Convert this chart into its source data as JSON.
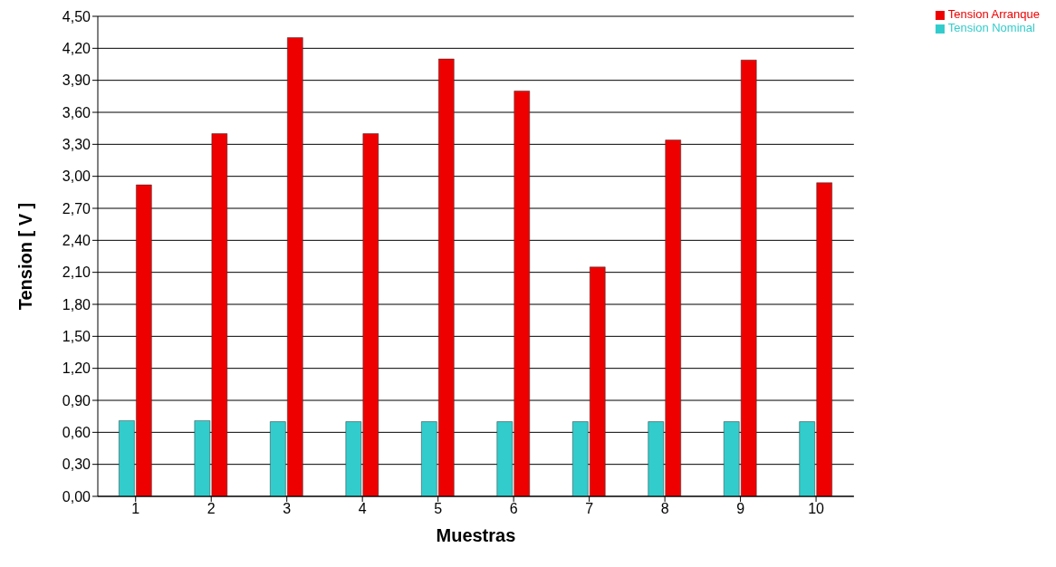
{
  "chart_data": {
    "type": "bar",
    "xlabel": "Muestras",
    "ylabel": "Tension [ V ]",
    "categories": [
      "1",
      "2",
      "3",
      "4",
      "5",
      "6",
      "7",
      "8",
      "9",
      "10"
    ],
    "series": [
      {
        "name": "Tension Nominal",
        "color": "#33cccc",
        "values": [
          0.71,
          0.71,
          0.7,
          0.7,
          0.7,
          0.7,
          0.7,
          0.7,
          0.7,
          0.7
        ]
      },
      {
        "name": "Tension Arranque",
        "color": "#ee0000",
        "values": [
          2.92,
          3.4,
          4.3,
          3.4,
          4.1,
          3.8,
          2.15,
          3.34,
          4.09,
          2.94
        ]
      }
    ],
    "ylim": [
      0,
      4.5
    ],
    "yticks": [
      {
        "value": 0,
        "label": "0,00"
      },
      {
        "value": 0.3,
        "label": "0,30"
      },
      {
        "value": 0.6,
        "label": "0,60"
      },
      {
        "value": 0.9,
        "label": "0,90"
      },
      {
        "value": 1.2,
        "label": "1,20"
      },
      {
        "value": 1.5,
        "label": "1,50"
      },
      {
        "value": 1.8,
        "label": "1,80"
      },
      {
        "value": 2.1,
        "label": "2,10"
      },
      {
        "value": 2.4,
        "label": "2,40"
      },
      {
        "value": 2.7,
        "label": "2,70"
      },
      {
        "value": 3.0,
        "label": "3,00"
      },
      {
        "value": 3.3,
        "label": "3,30"
      },
      {
        "value": 3.6,
        "label": "3,60"
      },
      {
        "value": 3.9,
        "label": "3,90"
      },
      {
        "value": 4.2,
        "label": "4,20"
      },
      {
        "value": 4.5,
        "label": "4,50"
      }
    ],
    "grid": "y",
    "legend": "top right"
  }
}
